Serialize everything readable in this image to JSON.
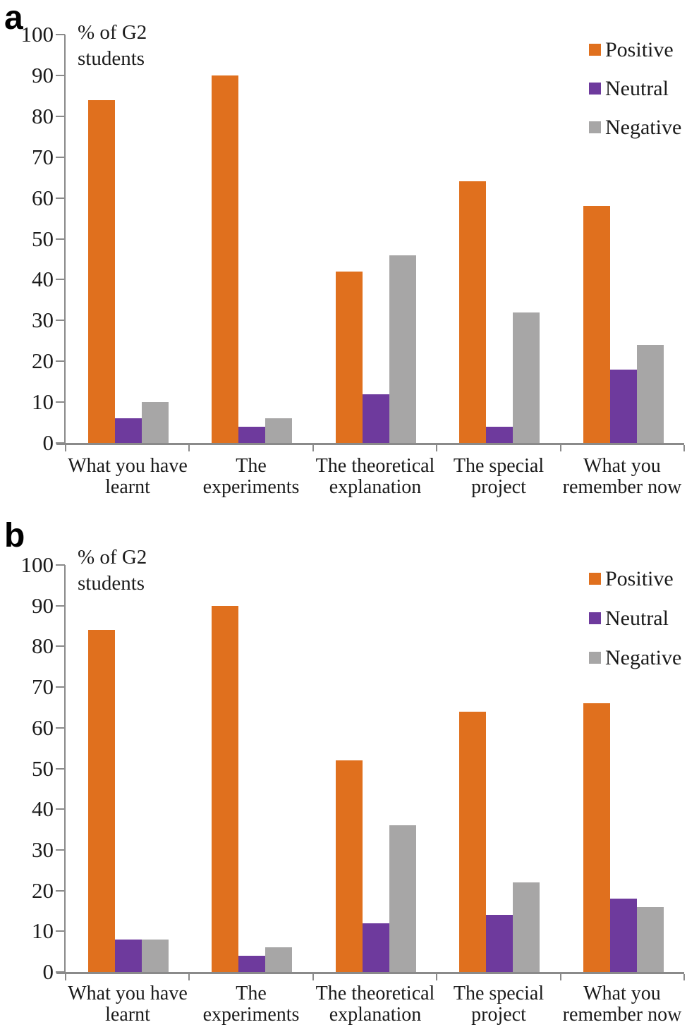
{
  "colors": {
    "positive": "#E0701E",
    "neutral": "#6E3A9D",
    "negative": "#A7A6A6",
    "axis": "#8A8A8A",
    "text": "#1B1B1B"
  },
  "chart_data": [
    {
      "type": "bar",
      "panel_label": "a",
      "title": "% of G2 students",
      "title_lines": [
        "% of G2",
        "students"
      ],
      "categories": [
        "What you have learnt",
        "The experiments",
        "The theoretical explanation",
        "The special project",
        "What you remember now"
      ],
      "category_lines": [
        [
          "What you have",
          "learnt"
        ],
        [
          "The",
          "experiments"
        ],
        [
          "The theoretical",
          "explanation"
        ],
        [
          "The special",
          "project"
        ],
        [
          "What you",
          "remember now"
        ]
      ],
      "series": [
        {
          "name": "Positive",
          "color": "#E0701E",
          "values": [
            84,
            90,
            42,
            64,
            58
          ]
        },
        {
          "name": "Neutral",
          "color": "#6E3A9D",
          "values": [
            6,
            4,
            12,
            4,
            18
          ]
        },
        {
          "name": "Negative",
          "color": "#A7A6A6",
          "values": [
            10,
            6,
            46,
            32,
            24
          ]
        }
      ],
      "ylim": [
        0,
        100
      ],
      "ytick_step": 10,
      "yticks": [
        "0",
        "10",
        "20",
        "30",
        "40",
        "50",
        "60",
        "70",
        "80",
        "90",
        "100"
      ],
      "legend_position": "top-right",
      "grid": false
    },
    {
      "type": "bar",
      "panel_label": "b",
      "title": "% of G2 students",
      "title_lines": [
        "% of G2",
        "students"
      ],
      "categories": [
        "What you have learnt",
        "The experiments",
        "The theoretical explanation",
        "The special project",
        "What you remember now"
      ],
      "category_lines": [
        [
          "What you have",
          "learnt"
        ],
        [
          "The",
          "experiments"
        ],
        [
          "The theoretical",
          "explanation"
        ],
        [
          "The special",
          "project"
        ],
        [
          "What you",
          "remember now"
        ]
      ],
      "series": [
        {
          "name": "Positive",
          "color": "#E0701E",
          "values": [
            84,
            90,
            52,
            64,
            66
          ]
        },
        {
          "name": "Neutral",
          "color": "#6E3A9D",
          "values": [
            8,
            4,
            12,
            14,
            18
          ]
        },
        {
          "name": "Negative",
          "color": "#A7A6A6",
          "values": [
            8,
            6,
            36,
            22,
            16
          ]
        }
      ],
      "ylim": [
        0,
        100
      ],
      "ytick_step": 10,
      "yticks": [
        "0",
        "10",
        "20",
        "30",
        "40",
        "50",
        "60",
        "70",
        "80",
        "90",
        "100"
      ],
      "legend_position": "top-right",
      "grid": false
    }
  ]
}
